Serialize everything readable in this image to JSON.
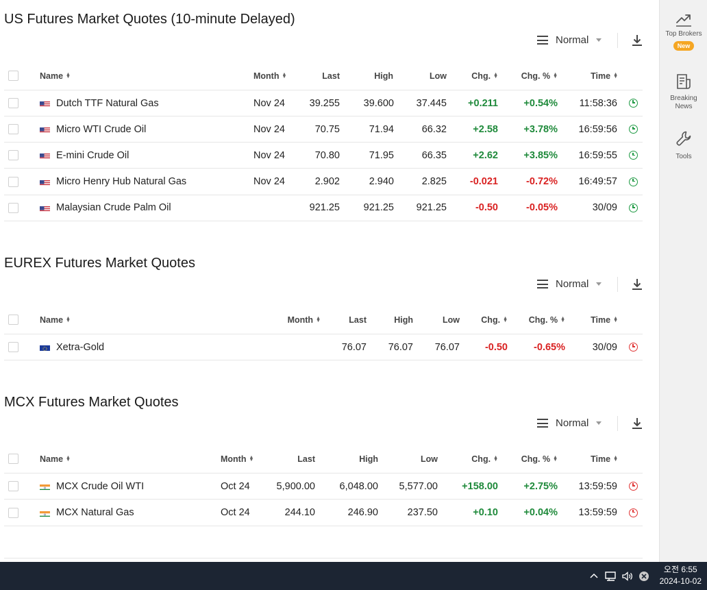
{
  "colors": {
    "positive": "#1f8a3b",
    "negative": "#d92222",
    "badge": "#f5a623",
    "taskbar": "#1c2533"
  },
  "sidebar": {
    "items": [
      {
        "label": "Top Brokers",
        "icon": "trend-up-icon",
        "badge": "New"
      },
      {
        "label": "Breaking News",
        "icon": "news-icon"
      },
      {
        "label": "Tools",
        "icon": "wrench-icon"
      }
    ]
  },
  "us": {
    "title": "US Futures Market Quotes (10-minute Delayed)",
    "view": "Normal",
    "headers": {
      "name": "Name",
      "month": "Month",
      "last": "Last",
      "high": "High",
      "low": "Low",
      "chg": "Chg.",
      "chgpct": "Chg. %",
      "time": "Time"
    },
    "rows": [
      {
        "flag": "us",
        "name": "Dutch TTF Natural Gas",
        "month": "Nov 24",
        "last": "39.255",
        "high": "39.600",
        "low": "37.445",
        "chg": "+0.211",
        "chgpct": "+0.54%",
        "time": "11:58:36",
        "dir": "pos",
        "clock": "green"
      },
      {
        "flag": "us",
        "name": "Micro WTI Crude Oil",
        "month": "Nov 24",
        "last": "70.75",
        "high": "71.94",
        "low": "66.32",
        "chg": "+2.58",
        "chgpct": "+3.78%",
        "time": "16:59:56",
        "dir": "pos",
        "clock": "green"
      },
      {
        "flag": "us",
        "name": "E-mini Crude Oil",
        "month": "Nov 24",
        "last": "70.80",
        "high": "71.95",
        "low": "66.35",
        "chg": "+2.62",
        "chgpct": "+3.85%",
        "time": "16:59:55",
        "dir": "pos",
        "clock": "green"
      },
      {
        "flag": "us",
        "name": "Micro Henry Hub Natural Gas",
        "month": "Nov 24",
        "last": "2.902",
        "high": "2.940",
        "low": "2.825",
        "chg": "-0.021",
        "chgpct": "-0.72%",
        "time": "16:49:57",
        "dir": "neg",
        "clock": "green"
      },
      {
        "flag": "us",
        "name": "Malaysian Crude Palm Oil",
        "month": "",
        "last": "921.25",
        "high": "921.25",
        "low": "921.25",
        "chg": "-0.50",
        "chgpct": "-0.05%",
        "time": "30/09",
        "dir": "neg",
        "clock": "green"
      }
    ]
  },
  "eurex": {
    "title": "EUREX Futures Market Quotes",
    "view": "Normal",
    "headers": {
      "name": "Name",
      "month": "Month",
      "last": "Last",
      "high": "High",
      "low": "Low",
      "chg": "Chg.",
      "chgpct": "Chg. %",
      "time": "Time"
    },
    "rows": [
      {
        "flag": "eu",
        "name": "Xetra-Gold",
        "month": "",
        "last": "76.07",
        "high": "76.07",
        "low": "76.07",
        "chg": "-0.50",
        "chgpct": "-0.65%",
        "time": "30/09",
        "dir": "neg",
        "clock": "red"
      }
    ]
  },
  "mcx": {
    "title": "MCX Futures Market Quotes",
    "view": "Normal",
    "headers": {
      "name": "Name",
      "month": "Month",
      "last": "Last",
      "high": "High",
      "low": "Low",
      "chg": "Chg.",
      "chgpct": "Chg. %",
      "time": "Time"
    },
    "rows": [
      {
        "flag": "in",
        "name": "MCX Crude Oil WTI",
        "month": "Oct 24",
        "last": "5,900.00",
        "high": "6,048.00",
        "low": "5,577.00",
        "chg": "+158.00",
        "chgpct": "+2.75%",
        "time": "13:59:59",
        "dir": "pos",
        "clock": "red"
      },
      {
        "flag": "in",
        "name": "MCX Natural Gas",
        "month": "Oct 24",
        "last": "244.10",
        "high": "246.90",
        "low": "237.50",
        "chg": "+0.10",
        "chgpct": "+0.04%",
        "time": "13:59:59",
        "dir": "pos",
        "clock": "red"
      }
    ]
  },
  "taskbar": {
    "time": "오전 6:55",
    "date": "2024-10-02"
  }
}
